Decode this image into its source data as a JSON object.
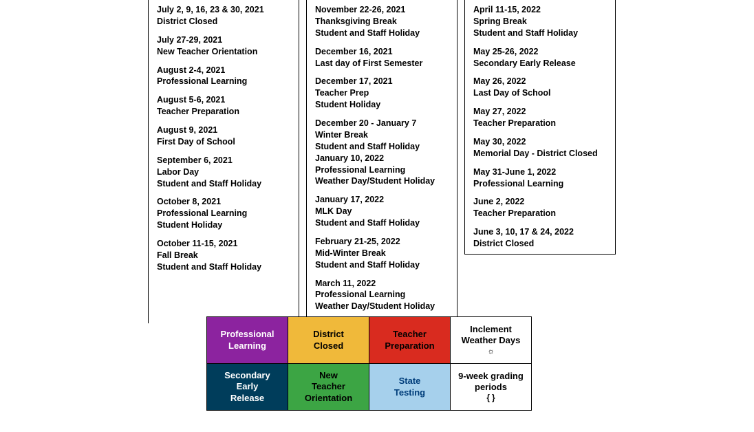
{
  "columns": [
    [
      [
        "July 2, 9, 16, 23 & 30, 2021",
        "District Closed"
      ],
      [
        "July 27-29, 2021",
        "New Teacher Orientation"
      ],
      [
        "August 2-4, 2021",
        "Professional Learning"
      ],
      [
        "August 5-6, 2021",
        "Teacher Preparation"
      ],
      [
        "August 9, 2021",
        "First Day of School"
      ],
      [
        "September 6, 2021",
        "Labor Day",
        "Student and Staff Holiday"
      ],
      [
        "October 8, 2021",
        "Professional Learning",
        "Student Holiday"
      ],
      [
        "October 11-15, 2021",
        "Fall Break",
        "Student and Staff Holiday"
      ]
    ],
    [
      [
        "November 22-26, 2021",
        "Thanksgiving Break",
        "Student and Staff Holiday"
      ],
      [
        "December 16, 2021",
        "Last day of First Semester"
      ],
      [
        "December 17, 2021",
        "Teacher Prep",
        "Student Holiday"
      ],
      [
        "December 20 - January 7",
        "Winter Break",
        "Student and Staff Holiday",
        "January 10, 2022",
        "Professional Learning",
        "Weather Day/Student Holiday"
      ],
      [
        "January 17, 2022",
        "MLK Day",
        "Student and Staff Holiday"
      ],
      [
        "February 21-25, 2022",
        "Mid-Winter Break",
        "Student and Staff Holiday"
      ],
      [
        "March 11, 2022",
        "Professional Learning",
        "Weather Day/Student Holiday"
      ]
    ],
    [
      [
        "April 11-15, 2022",
        "Spring Break",
        "Student and Staff Holiday"
      ],
      [
        "May 25-26, 2022",
        "Secondary Early Release"
      ],
      [
        "May 26, 2022",
        "Last Day of School"
      ],
      [
        "May 27, 2022",
        "Teacher Preparation"
      ],
      [
        "May 30, 2022",
        "Memorial Day - District Closed"
      ],
      [
        "May 31-June 1, 2022",
        "Professional Learning"
      ],
      [
        "June 2, 2022",
        "Teacher Preparation"
      ],
      [
        "June 3, 10, 17 & 24, 2022",
        "District Closed"
      ]
    ]
  ],
  "legend": [
    [
      {
        "label": "Professional Learning",
        "bg": "#8c239f",
        "fg": "#ffffff"
      },
      {
        "label": "District Closed",
        "bg": "#f0b93a",
        "fg": "#000000"
      },
      {
        "label": "Teacher Preparation",
        "bg": "#d92b1f",
        "fg": "#000000"
      },
      {
        "label": "Inclement Weather Days",
        "sub": "☼",
        "bg": "#ffffff",
        "fg": "#000000"
      }
    ],
    [
      {
        "label": "Secondary Early Release",
        "bg": "#003d5b",
        "fg": "#ffffff"
      },
      {
        "label": "New Teacher Orientation",
        "bg": "#3ca544",
        "fg": "#000000"
      },
      {
        "label": "State Testing",
        "bg": "#a6d0ec",
        "fg": "#003d7a"
      },
      {
        "label": "9-week grading periods",
        "sub": "{  }",
        "bg": "#ffffff",
        "fg": "#000000"
      }
    ]
  ]
}
